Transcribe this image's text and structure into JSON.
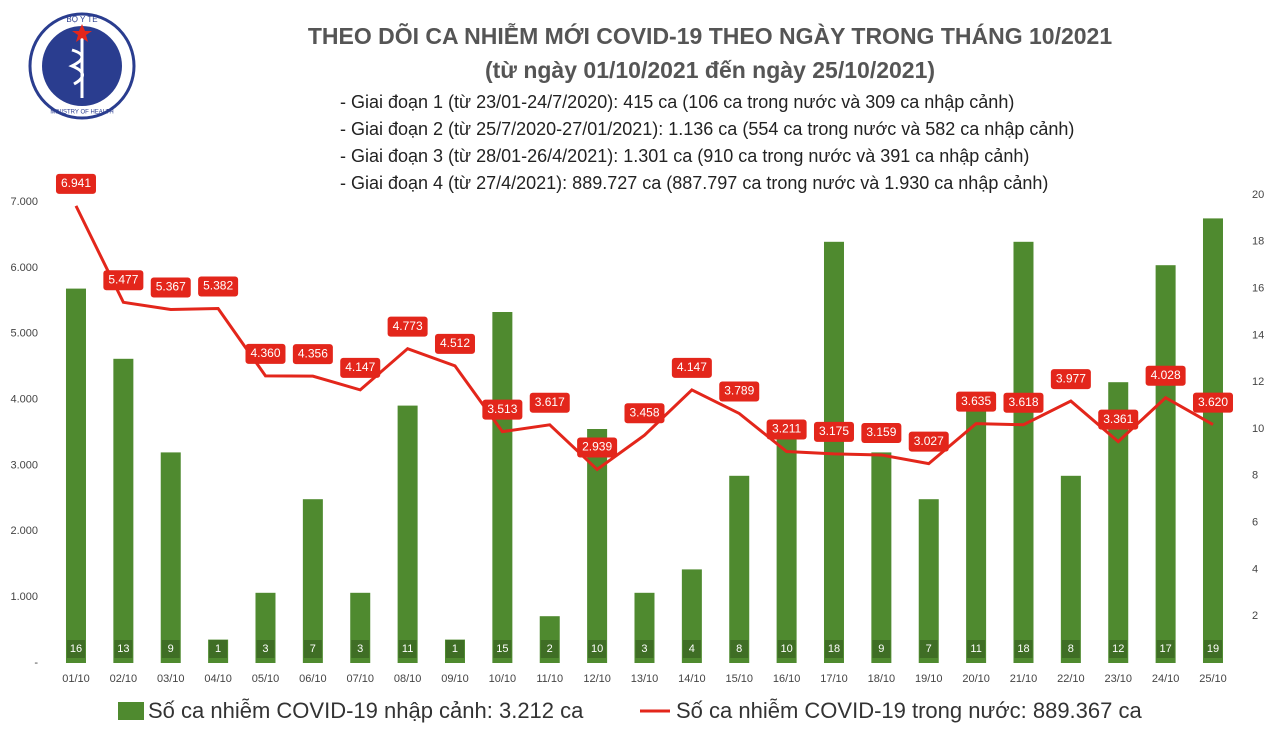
{
  "logo": {
    "top": "BỘ Y TẾ",
    "bottom": "MINISTRY OF HEALTH"
  },
  "chart_data": {
    "type": "bar-line",
    "title": "THEO DÕI CA NHIỄM MỚI COVID-19 THEO NGÀY TRONG THÁNG 10/2021",
    "subtitle": "(từ ngày 01/10/2021 đến ngày 25/10/2021)",
    "notes": [
      "- Giai đoạn 1 (từ 23/01-24/7/2020): 415 ca (106 ca trong nước và 309 ca nhập cảnh)",
      "- Giai đoạn 2 (từ 25/7/2020-27/01/2021): 1.136 ca (554 ca trong nước và 582 ca nhập cảnh)",
      "- Giai đoạn 3 (từ 28/01-26/4/2021): 1.301 ca (910 ca trong nước và 391 ca nhập cảnh)",
      "- Giai đoạn 4 (từ 27/4/2021): 889.727 ca (887.797 ca trong nước và 1.930 ca nhập cảnh)"
    ],
    "categories": [
      "01/10",
      "02/10",
      "03/10",
      "04/10",
      "05/10",
      "06/10",
      "07/10",
      "08/10",
      "09/10",
      "10/10",
      "11/10",
      "12/10",
      "13/10",
      "14/10",
      "15/10",
      "16/10",
      "17/10",
      "18/10",
      "19/10",
      "20/10",
      "21/10",
      "22/10",
      "23/10",
      "24/10",
      "25/10"
    ],
    "series": [
      {
        "name": "Số ca nhiễm COVID-19 nhập cảnh: 3.212 ca",
        "type": "bar",
        "axis": "y2",
        "color": "#4f8a2f",
        "values": [
          16,
          13,
          9,
          1,
          3,
          7,
          3,
          11,
          1,
          15,
          2,
          10,
          3,
          4,
          8,
          10,
          18,
          9,
          7,
          11,
          18,
          8,
          12,
          17,
          19
        ]
      },
      {
        "name": "Số ca nhiễm COVID-19 trong nước: 889.367 ca",
        "type": "line",
        "color": "#e3261b",
        "values": [
          6941,
          5477,
          5367,
          5382,
          4360,
          4356,
          4147,
          4773,
          4512,
          3513,
          3617,
          2939,
          3458,
          4147,
          3789,
          3211,
          3175,
          3159,
          3027,
          3635,
          3618,
          3977,
          3361,
          4028,
          3620
        ],
        "value_labels": [
          "6.941",
          "5.477",
          "5.367",
          "5.382",
          "4.360",
          "4.356",
          "4.147",
          "4.773",
          "4.512",
          "3.513",
          "3.617",
          "2.939",
          "3.458",
          "4.147",
          "3.789",
          "3.211",
          "3.175",
          "3.159",
          "3.027",
          "3.635",
          "3.618",
          "3.977",
          "3.361",
          "4.028",
          "3.620"
        ]
      }
    ],
    "ylim": [
      0,
      7000
    ],
    "yticks": [
      {
        "value": 0,
        "label": "-"
      },
      {
        "value": 1000,
        "label": "1.000"
      },
      {
        "value": 2000,
        "label": "2.000"
      },
      {
        "value": 3000,
        "label": "3.000"
      },
      {
        "value": 4000,
        "label": "4.000"
      },
      {
        "value": 5000,
        "label": "5.000"
      },
      {
        "value": 6000,
        "label": "6.000"
      },
      {
        "value": 7000,
        "label": "7.000"
      }
    ],
    "y2lim": [
      0,
      20
    ],
    "y2ticks": [
      2,
      4,
      6,
      8,
      10,
      12,
      14,
      16,
      18,
      20
    ],
    "grid": false
  }
}
